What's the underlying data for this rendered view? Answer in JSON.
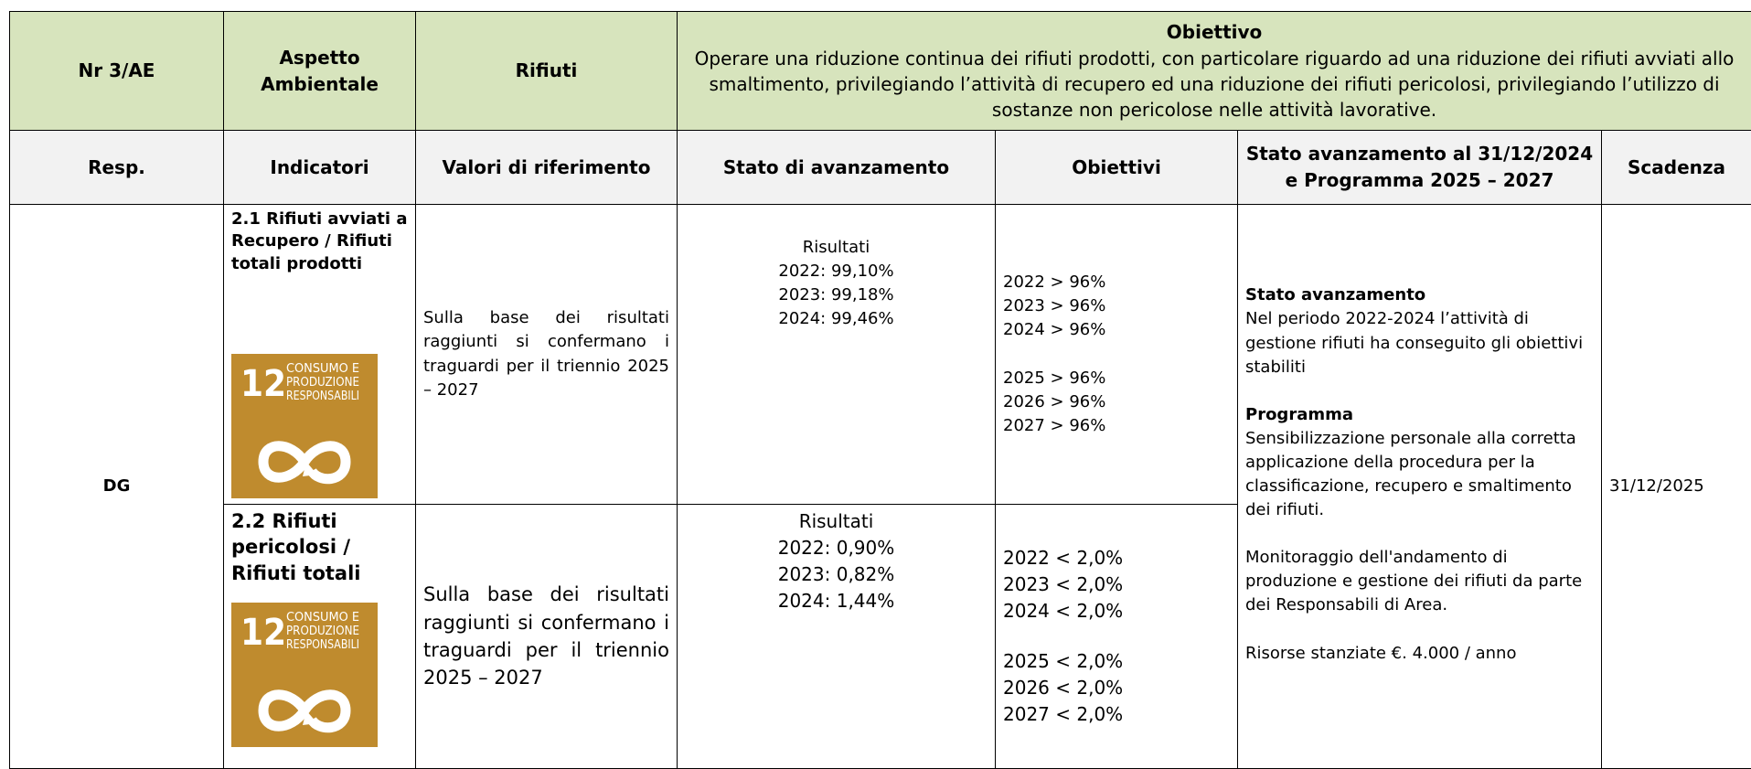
{
  "header": {
    "nr": "Nr 3/AE",
    "aspect_label": "Aspetto Ambientale",
    "aspect": "Rifiuti",
    "objective_title": "Obiettivo",
    "objective_text": "Operare una riduzione continua dei rifiuti prodotti, con particolare riguardo ad una riduzione dei rifiuti avviati allo smaltimento, privilegiando l’attività di recupero ed una riduzione dei rifiuti pericolosi, privilegiando l’utilizzo di sostanze non pericolose nelle attività lavorative."
  },
  "columns": [
    "Resp.",
    "Indicatori",
    "Valori di riferimento",
    "Stato di avanzamento",
    "Obiettivi",
    "Stato avanzamento al 31/12/2024 e Programma 2025 – 2027",
    "Scadenza"
  ],
  "resp": "DG",
  "indicators": [
    {
      "name": "2.1 Rifiuti avviati a Recupero / Rifiuti totali prodotti",
      "icon_number": "12",
      "icon_lines": [
        "CONSUMO E",
        "PRODUZIONE",
        "RESPONSABILI"
      ],
      "reference": "Sulla base dei risultati raggiunti si confermano i traguardi per il triennio 2025 – 2027",
      "results_label": "Risultati",
      "results": [
        "2022: 99,10%",
        "2023: 99,18%",
        "2024: 99,46%"
      ],
      "objectives": [
        [
          "2022 > 96%",
          "2023 > 96%",
          "2024 > 96%"
        ],
        [
          "2025 > 96%",
          "2026 > 96%",
          "2027 > 96%"
        ]
      ]
    },
    {
      "name": "2.2 Rifiuti pericolosi / Rifiuti totali",
      "icon_number": "12",
      "icon_lines": [
        "CONSUMO E",
        "PRODUZIONE",
        "RESPONSABILI"
      ],
      "reference": "Sulla base dei risultati raggiunti si confermano i traguardi per il triennio 2025 – 2027",
      "results_label": "Risultati",
      "results": [
        "2022: 0,90%",
        "2023: 0,82%",
        "2024: 1,44%"
      ],
      "objectives": [
        [
          "2022 < 2,0%",
          "2023 < 2,0%",
          "2024 < 2,0%"
        ],
        [
          "2025 < 2,0%",
          "2026 < 2,0%",
          "2027 < 2,0%"
        ]
      ]
    }
  ],
  "status": [
    {
      "title": "Stato avanzamento",
      "text": "Nel periodo 2022-2024 l’attività di gestione rifiuti ha conseguito gli obiettivi stabiliti"
    },
    {
      "title": "Programma",
      "text": "Sensibilizzazione personale alla corretta applicazione della procedura per la classificazione, recupero e smaltimento dei rifiuti."
    },
    {
      "title": null,
      "text": "Monitoraggio dell'andamento di produzione e gestione dei rifiuti da parte dei Responsabili di Area."
    },
    {
      "title": null,
      "text": "Risorse stanziate €. 4.000 / anno"
    }
  ],
  "deadline": "31/12/2025"
}
